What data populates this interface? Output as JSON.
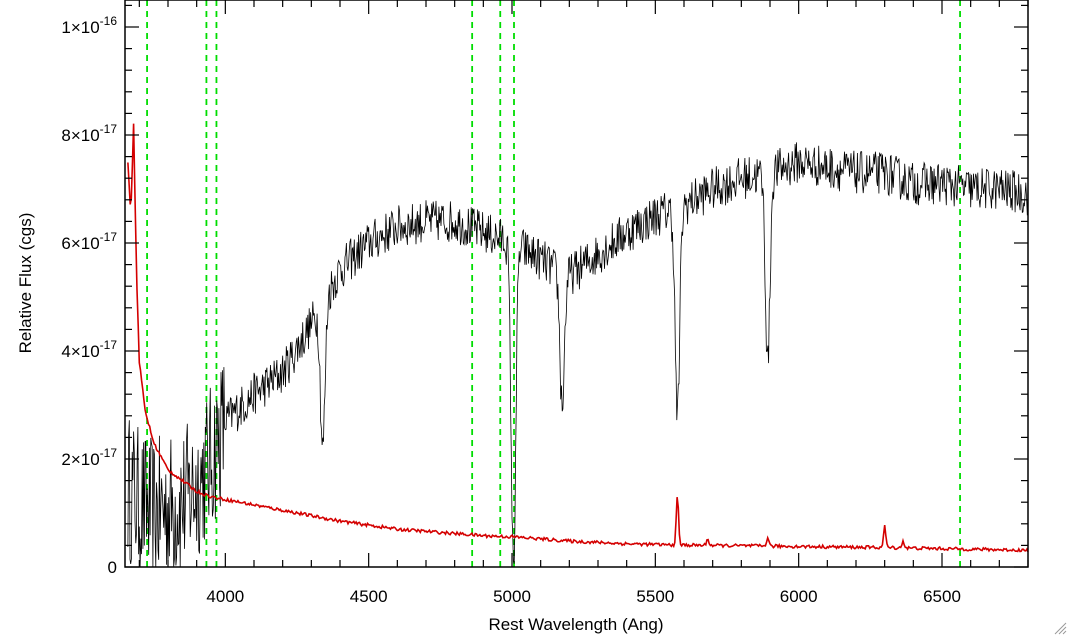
{
  "chart_data": {
    "type": "line",
    "title": "",
    "xlabel": "Rest Wavelength (Ang)",
    "ylabel": "Relative Flux (cgs)",
    "xlim": [
      3650,
      6800
    ],
    "ylim": [
      0,
      1.05e-16
    ],
    "x_ticks": [
      {
        "value": 4000,
        "label": "4000"
      },
      {
        "value": 4500,
        "label": "4500"
      },
      {
        "value": 5000,
        "label": "5000"
      },
      {
        "value": 5500,
        "label": "5500"
      },
      {
        "value": 6000,
        "label": "6000"
      },
      {
        "value": 6500,
        "label": "6500"
      }
    ],
    "y_ticks": [
      {
        "value": 0,
        "mantissa": "0",
        "exponent": ""
      },
      {
        "value": 2e-17,
        "mantissa": "2×10",
        "exponent": "-17"
      },
      {
        "value": 4e-17,
        "mantissa": "4×10",
        "exponent": "-17"
      },
      {
        "value": 6e-17,
        "mantissa": "6×10",
        "exponent": "-17"
      },
      {
        "value": 8e-17,
        "mantissa": "8×10",
        "exponent": "-17"
      },
      {
        "value": 1e-16,
        "mantissa": "1×10",
        "exponent": "-16"
      }
    ],
    "grid": false,
    "series": [
      {
        "color": "#000000",
        "noise": 4e-18,
        "x": [
          3660,
          3700,
          3750,
          3800,
          3850,
          3900,
          3950,
          4000,
          4100,
          4200,
          4300,
          4400,
          4500,
          4600,
          4700,
          4800,
          4900,
          5000,
          5100,
          5150,
          5200,
          5300,
          5400,
          5500,
          5600,
          5700,
          5800,
          5900,
          6000,
          6100,
          6200,
          6300,
          6400,
          6500,
          6600,
          6700,
          6800
        ],
        "y": [
          1.5e-17,
          1.2e-17,
          1e-17,
          1.1e-17,
          1.2e-17,
          1.5e-17,
          2e-17,
          2.7e-17,
          3.2e-17,
          3.6e-17,
          4.5e-17,
          5.5e-17,
          6e-17,
          6.3e-17,
          6.4e-17,
          6.4e-17,
          6.2e-17,
          6e-17,
          5.7e-17,
          5.5e-17,
          5.4e-17,
          5.8e-17,
          6.2e-17,
          6.5e-17,
          6.7e-17,
          7e-17,
          7.2e-17,
          7.3e-17,
          7.5e-17,
          7.4e-17,
          7.3e-17,
          7.3e-17,
          7.1e-17,
          7.1e-17,
          7e-17,
          7e-17,
          6.9e-17
        ],
        "features": [
          {
            "x": 5175,
            "y": 3e-17
          },
          {
            "x": 5577,
            "y": 2.8e-17
          },
          {
            "x": 5892,
            "y": 3.8e-17
          },
          {
            "x": 5005,
            "y": 0
          },
          {
            "x": 4340,
            "y": 2.2e-17
          }
        ]
      },
      {
        "color": "#d40000",
        "noise": 3e-19,
        "x": [
          3660,
          3670,
          3680,
          3690,
          3700,
          3720,
          3750,
          3800,
          3850,
          3900,
          3950,
          4000,
          4100,
          4200,
          4400,
          4600,
          4800,
          4900,
          5000,
          5200,
          5400,
          5550,
          5700,
          6000,
          6300,
          6500,
          6800
        ],
        "y": [
          7.5e-17,
          6.5e-17,
          8.2e-17,
          5.5e-17,
          3.8e-17,
          2.9e-17,
          2.3e-17,
          1.8e-17,
          1.6e-17,
          1.4e-17,
          1.3e-17,
          1.25e-17,
          1.15e-17,
          1.05e-17,
          8.5e-18,
          7e-18,
          6.2e-18,
          5.8e-18,
          5.6e-18,
          4.8e-18,
          4.3e-18,
          4.1e-18,
          4e-18,
          3.8e-18,
          3.6e-18,
          3.4e-18,
          3.1e-18
        ],
        "features": [
          {
            "x": 5577,
            "y": 1.3e-17
          },
          {
            "x": 5892,
            "y": 5.5e-18
          },
          {
            "x": 6300,
            "y": 7.5e-18
          },
          {
            "x": 6364,
            "y": 4.8e-18
          },
          {
            "x": 5683,
            "y": 5.2e-18
          }
        ]
      }
    ],
    "vertical_markers": {
      "color": "#00dd00",
      "x": [
        3727,
        3934,
        3969,
        4861,
        4959,
        5007,
        6563
      ]
    }
  },
  "ui": {
    "resize_grip_icon": "resize-grip-icon"
  }
}
